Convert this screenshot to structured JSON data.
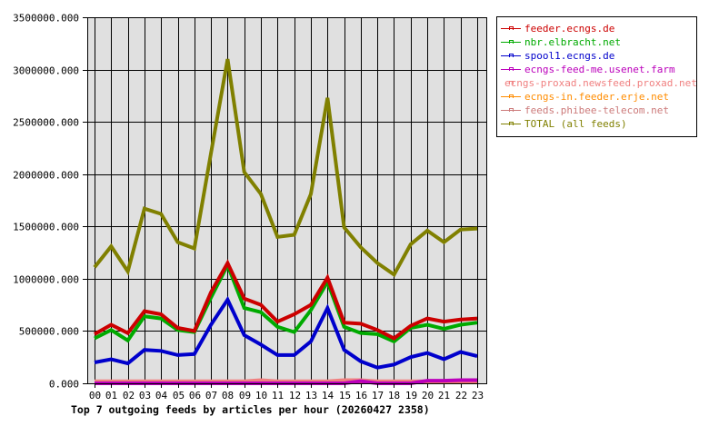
{
  "chart_data": {
    "type": "line",
    "title": "Top 7 outgoing feeds by articles per hour (20260427 2358)",
    "xlabel": "",
    "ylabel": "",
    "ylim": [
      0,
      3500000
    ],
    "yticks": [
      "0.000",
      "500000.000",
      "1000000.000",
      "1500000.000",
      "2000000.000",
      "2500000.000",
      "3000000.000",
      "3500000.000"
    ],
    "categories": [
      "00",
      "01",
      "02",
      "03",
      "04",
      "05",
      "06",
      "07",
      "08",
      "09",
      "10",
      "11",
      "12",
      "13",
      "14",
      "15",
      "16",
      "17",
      "18",
      "19",
      "20",
      "21",
      "22",
      "23"
    ],
    "grid": true,
    "legend_position": "right",
    "series": [
      {
        "name": "feeder.ecngs.de",
        "color": "#cc0000",
        "values": [
          470000,
          560000,
          480000,
          690000,
          660000,
          530000,
          500000,
          870000,
          1150000,
          810000,
          750000,
          590000,
          660000,
          750000,
          1010000,
          580000,
          570000,
          510000,
          430000,
          550000,
          620000,
          590000,
          610000,
          620000
        ]
      },
      {
        "name": "nbr.elbracht.net",
        "color": "#00aa00",
        "values": [
          430000,
          510000,
          410000,
          640000,
          620000,
          510000,
          490000,
          820000,
          1130000,
          720000,
          680000,
          540000,
          490000,
          700000,
          970000,
          540000,
          480000,
          470000,
          400000,
          530000,
          560000,
          520000,
          560000,
          580000
        ]
      },
      {
        "name": "spool1.ecngs.de",
        "color": "#0000cc",
        "values": [
          200000,
          230000,
          190000,
          320000,
          310000,
          270000,
          280000,
          560000,
          800000,
          460000,
          370000,
          270000,
          270000,
          400000,
          720000,
          320000,
          210000,
          150000,
          180000,
          250000,
          290000,
          230000,
          300000,
          260000
        ]
      },
      {
        "name": "ecngs-feed-me.usenet.farm",
        "color": "#bb00bb",
        "values": [
          0,
          0,
          0,
          0,
          0,
          0,
          0,
          0,
          0,
          0,
          0,
          0,
          0,
          0,
          0,
          0,
          20000,
          0,
          0,
          0,
          25000,
          25000,
          30000,
          30000
        ]
      },
      {
        "name": "ecngs-proxad.newsfeed.proxad.net",
        "color": "#f08080",
        "values": [
          20000,
          20000,
          20000,
          20000,
          20000,
          20000,
          20000,
          20000,
          20000,
          20000,
          30000,
          20000,
          20000,
          20000,
          20000,
          30000,
          30000,
          20000,
          20000,
          20000,
          20000,
          20000,
          20000,
          20000
        ]
      },
      {
        "name": "ecngs-in.feeder.erje.net",
        "color": "#ff8c00",
        "values": [
          10000,
          10000,
          10000,
          10000,
          10000,
          10000,
          10000,
          10000,
          10000,
          10000,
          10000,
          10000,
          10000,
          10000,
          10000,
          10000,
          10000,
          10000,
          10000,
          10000,
          10000,
          10000,
          10000,
          10000
        ]
      },
      {
        "name": "feeds.phibee-telecom.net",
        "color": "#cc7a7a",
        "values": [
          15000,
          15000,
          15000,
          15000,
          15000,
          15000,
          15000,
          15000,
          15000,
          15000,
          15000,
          15000,
          15000,
          15000,
          15000,
          15000,
          15000,
          15000,
          15000,
          15000,
          15000,
          15000,
          15000,
          15000
        ]
      },
      {
        "name": "TOTAL (all feeds)",
        "color": "#808000",
        "values": [
          1110000,
          1310000,
          1070000,
          1670000,
          1620000,
          1350000,
          1290000,
          2200000,
          3100000,
          2020000,
          1810000,
          1400000,
          1420000,
          1810000,
          2730000,
          1490000,
          1300000,
          1150000,
          1040000,
          1330000,
          1460000,
          1350000,
          1470000,
          1480000
        ]
      }
    ]
  },
  "legend": {
    "items": [
      {
        "label": "feeder.ecngs.de",
        "color": "#cc0000"
      },
      {
        "label": "nbr.elbracht.net",
        "color": "#00aa00"
      },
      {
        "label": "spool1.ecngs.de",
        "color": "#0000cc"
      },
      {
        "label": "ecngs-feed-me.usenet.farm",
        "color": "#bb00bb"
      },
      {
        "label": "ecngs-proxad.newsfeed.proxad.net",
        "color": "#f08080"
      },
      {
        "label": "ecngs-in.feeder.erje.net",
        "color": "#ff8c00"
      },
      {
        "label": "feeds.phibee-telecom.net",
        "color": "#cc7a7a"
      },
      {
        "label": "TOTAL (all feeds)",
        "color": "#808000"
      }
    ]
  },
  "caption": "Top 7 outgoing feeds by articles per hour (20260427 2358)",
  "colors": {
    "plot_bg": "#e0e0e0",
    "grid": "#000000"
  }
}
